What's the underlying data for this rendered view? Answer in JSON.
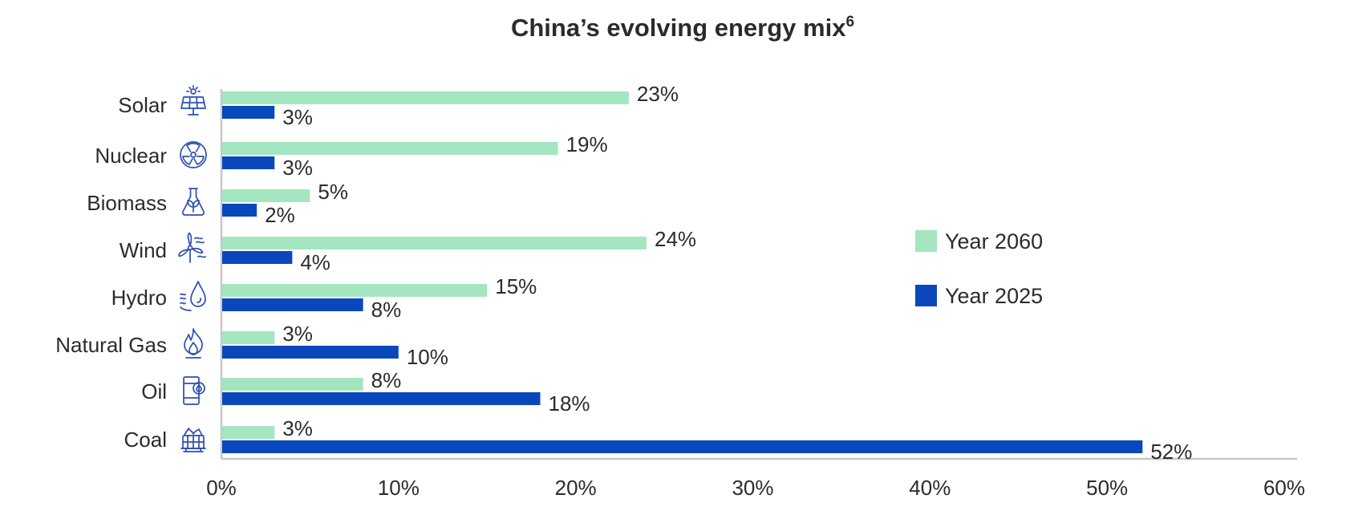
{
  "chart_data": {
    "type": "bar",
    "orientation": "horizontal",
    "title": "China’s evolving energy mix",
    "title_superscript": "6",
    "categories": [
      "Solar",
      "Nuclear",
      "Biomass",
      "Wind",
      "Hydro",
      "Natural Gas",
      "Oil",
      "Coal"
    ],
    "category_icons": [
      "solar-panel-icon",
      "nuclear-icon",
      "biomass-flask-icon",
      "wind-turbine-icon",
      "hydro-water-drop-icon",
      "natural-gas-flame-icon",
      "oil-barrel-icon",
      "coal-cart-icon"
    ],
    "series": [
      {
        "name": "Year 2060",
        "color": "#a3e6bf",
        "values": [
          23,
          19,
          5,
          24,
          15,
          3,
          8,
          3
        ]
      },
      {
        "name": "Year 2025",
        "color": "#0a47bd",
        "values": [
          3,
          3,
          2,
          4,
          8,
          10,
          18,
          52
        ]
      }
    ],
    "xlim": [
      0,
      60
    ],
    "xticks": [
      0,
      10,
      20,
      30,
      40,
      50,
      60
    ],
    "tick_suffix": "%",
    "value_suffix": "%",
    "grid": false,
    "legend_position": "right"
  }
}
